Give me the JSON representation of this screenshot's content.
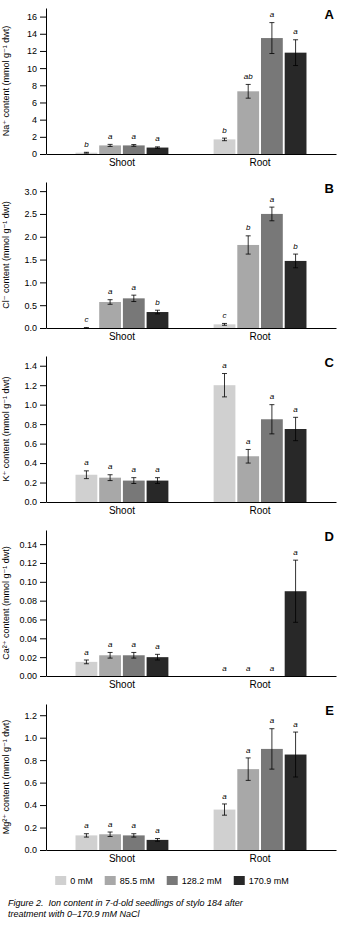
{
  "chart_data": [
    {
      "type": "bar",
      "title": "A",
      "y_label": "Na⁺ content (mmol g⁻¹ dwt)",
      "categories": [
        "Shoot",
        "Root"
      ],
      "ylim": [
        0,
        17
      ],
      "yticks": [
        0,
        2,
        4,
        6,
        8,
        10,
        12,
        14,
        16
      ],
      "grid": false,
      "series": [
        {
          "color": "#d0d0d0",
          "values": [
            0.15,
            1.7
          ],
          "errors": [
            0.05,
            0.15
          ],
          "annotations": [
            "b",
            "b"
          ]
        },
        {
          "color": "#a8a8a8",
          "values": [
            1.0,
            7.3
          ],
          "errors": [
            0.12,
            0.8
          ],
          "annotations": [
            "a",
            "ab"
          ]
        },
        {
          "color": "#787878",
          "values": [
            1.0,
            13.5
          ],
          "errors": [
            0.1,
            1.8
          ],
          "annotations": [
            "a",
            "a"
          ]
        },
        {
          "color": "#282828",
          "values": [
            0.75,
            11.8
          ],
          "errors": [
            0.08,
            1.5
          ],
          "annotations": [
            "a",
            "a"
          ]
        }
      ]
    },
    {
      "type": "bar",
      "title": "B",
      "y_label": "Cl⁻ content (mmol g⁻¹ dwt)",
      "categories": [
        "Shoot",
        "Root"
      ],
      "ylim": [
        0,
        3.2
      ],
      "yticks": [
        {
          "value": 0,
          "label": "0.0"
        },
        0.5,
        {
          "value": 1,
          "label": "1.0"
        },
        1.5,
        {
          "value": 2,
          "label": "2.0"
        },
        2.5,
        {
          "value": 3,
          "label": "3.0"
        }
      ],
      "grid": false,
      "series": [
        {
          "color": "#d0d0d0",
          "values": [
            0.0,
            0.08
          ],
          "errors": [
            0.01,
            0.02
          ],
          "annotations": [
            "c",
            "c"
          ]
        },
        {
          "color": "#a8a8a8",
          "values": [
            0.57,
            1.82
          ],
          "errors": [
            0.05,
            0.2
          ],
          "annotations": [
            "a",
            "b"
          ]
        },
        {
          "color": "#787878",
          "values": [
            0.65,
            2.5
          ],
          "errors": [
            0.07,
            0.15
          ],
          "annotations": [
            "a",
            "a"
          ]
        },
        {
          "color": "#282828",
          "values": [
            0.35,
            1.47
          ],
          "errors": [
            0.04,
            0.15
          ],
          "annotations": [
            "b",
            "b"
          ]
        }
      ]
    },
    {
      "type": "bar",
      "title": "C",
      "y_label": "K⁺ content (mmol g⁻¹ dwt)",
      "categories": [
        "Shoot",
        "Root"
      ],
      "ylim": [
        0,
        1.5
      ],
      "yticks": [
        {
          "value": 0,
          "label": "0.0"
        },
        0.2,
        0.4,
        0.6,
        0.8,
        {
          "value": 1,
          "label": "1.0"
        },
        1.2,
        1.4
      ],
      "grid": false,
      "series": [
        {
          "color": "#d0d0d0",
          "values": [
            0.28,
            1.2
          ],
          "errors": [
            0.04,
            0.12
          ],
          "annotations": [
            "a",
            "a"
          ]
        },
        {
          "color": "#a8a8a8",
          "values": [
            0.25,
            0.47
          ],
          "errors": [
            0.03,
            0.07
          ],
          "annotations": [
            "a",
            "a"
          ]
        },
        {
          "color": "#787878",
          "values": [
            0.22,
            0.85
          ],
          "errors": [
            0.03,
            0.15
          ],
          "annotations": [
            "a",
            "a"
          ]
        },
        {
          "color": "#282828",
          "values": [
            0.22,
            0.75
          ],
          "errors": [
            0.03,
            0.12
          ],
          "annotations": [
            "a",
            "a"
          ]
        }
      ]
    },
    {
      "type": "bar",
      "title": "D",
      "y_label": "Ca²⁺ content (mmol g⁻¹ dwt)",
      "categories": [
        "Shoot",
        "Root"
      ],
      "ylim": [
        0,
        0.155
      ],
      "yticks": [
        {
          "value": 0,
          "label": "0.00"
        },
        0.02,
        0.04,
        0.06,
        0.08,
        {
          "value": 0.1,
          "label": "0.10"
        },
        0.12,
        0.14
      ],
      "grid": false,
      "series": [
        {
          "color": "#d0d0d0",
          "values": [
            0.015,
            0.0
          ],
          "errors": [
            0.002,
            0.0
          ],
          "annotations": [
            "a",
            "a"
          ]
        },
        {
          "color": "#a8a8a8",
          "values": [
            0.022,
            0.0
          ],
          "errors": [
            0.003,
            0.0
          ],
          "annotations": [
            "a",
            "a"
          ]
        },
        {
          "color": "#787878",
          "values": [
            0.022,
            0.0
          ],
          "errors": [
            0.003,
            0.0
          ],
          "annotations": [
            "a",
            "a"
          ]
        },
        {
          "color": "#282828",
          "values": [
            0.02,
            0.09
          ],
          "errors": [
            0.003,
            0.033
          ],
          "annotations": [
            "a",
            "a"
          ]
        }
      ]
    },
    {
      "type": "bar",
      "title": "E",
      "y_label": "Mg²⁺ content (mmol g⁻¹ dwt)",
      "categories": [
        "Shoot",
        "Root"
      ],
      "ylim": [
        0,
        1.3
      ],
      "yticks": [
        {
          "value": 0,
          "label": "0.0"
        },
        0.2,
        0.4,
        0.6,
        0.8,
        {
          "value": 1,
          "label": "1.0"
        },
        1.2
      ],
      "grid": false,
      "legend": "bottom",
      "annotations": [
        "Figure 2.  Ion content in 7-d-old seedlings of stylo 184 after\ntreatment with 0–170.9 mM NaCl"
      ],
      "series": [
        {
          "name": "0 mM",
          "color": "#d0d0d0",
          "values": [
            0.13,
            0.36
          ],
          "errors": [
            0.015,
            0.05
          ],
          "annotations": [
            "a",
            "a"
          ]
        },
        {
          "name": "85.5 mM",
          "color": "#a8a8a8",
          "values": [
            0.14,
            0.72
          ],
          "errors": [
            0.02,
            0.1
          ],
          "annotations": [
            "a",
            "a"
          ]
        },
        {
          "name": "128.2 mM",
          "color": "#787878",
          "values": [
            0.13,
            0.9
          ],
          "errors": [
            0.015,
            0.18
          ],
          "annotations": [
            "a",
            "a"
          ]
        },
        {
          "name": "170.9 mM",
          "color": "#282828",
          "values": [
            0.09,
            0.85
          ],
          "errors": [
            0.012,
            0.2
          ],
          "annotations": [
            "a",
            "a"
          ]
        }
      ]
    }
  ]
}
